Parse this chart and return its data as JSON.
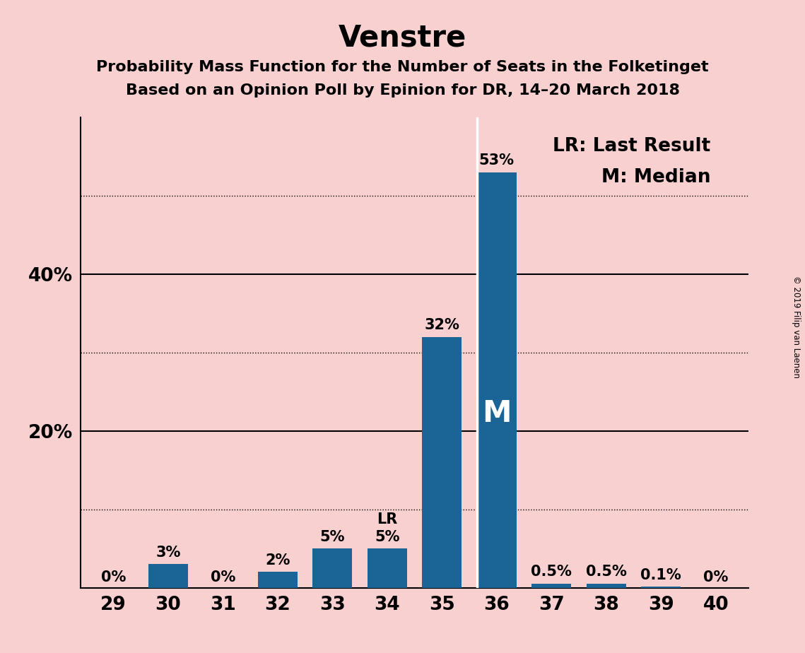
{
  "title": "Venstre",
  "subtitle1": "Probability Mass Function for the Number of Seats in the Folketinget",
  "subtitle2": "Based on an Opinion Poll by Epinion for DR, 14–20 March 2018",
  "categories": [
    29,
    30,
    31,
    32,
    33,
    34,
    35,
    36,
    37,
    38,
    39,
    40
  ],
  "values": [
    0.0,
    3.0,
    0.0,
    2.0,
    5.0,
    5.0,
    32.0,
    53.0,
    0.5,
    0.5,
    0.1,
    0.0
  ],
  "bar_color": "#1a6496",
  "background_color": "#f9d0d0",
  "label_texts": [
    "0%",
    "3%",
    "0%",
    "2%",
    "5%",
    "5%",
    "32%",
    "53%",
    "0.5%",
    "0.5%",
    "0.1%",
    "0%"
  ],
  "dotted_grid_values": [
    10,
    30,
    50
  ],
  "solid_grid_values": [
    20,
    40
  ],
  "lr_seat": 34,
  "median_seat": 36,
  "legend_lr": "LR: Last Result",
  "legend_m": "M: Median",
  "copyright": "© 2019 Filip van Laenen",
  "title_fontsize": 30,
  "subtitle_fontsize": 16,
  "axis_tick_fontsize": 19,
  "label_fontsize": 15,
  "legend_fontsize": 19,
  "m_fontsize": 30,
  "ylim": [
    0,
    60
  ],
  "ytick_positions": [
    20,
    40
  ],
  "ytick_labels": [
    "20%",
    "40%"
  ]
}
